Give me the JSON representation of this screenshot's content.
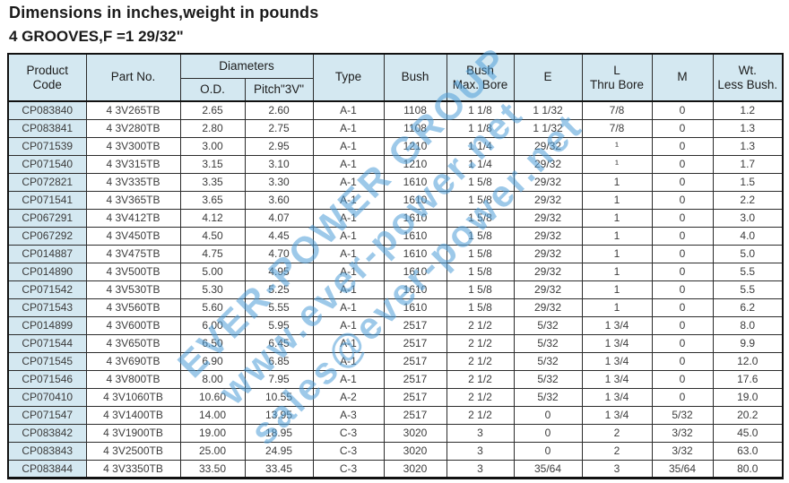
{
  "page": {
    "title": "Dimensions in inches,weight in pounds",
    "subtitle": "4 GROOVES,F =1 29/32\""
  },
  "watermark": {
    "color": "#4e9ed8",
    "lines": [
      "EVER-POWER GROUP",
      "www.ever-power.net",
      "sales@ever-power.net"
    ]
  },
  "table": {
    "headers": {
      "product_code": [
        "Product",
        "Code"
      ],
      "part_no": "Part No.",
      "diameters": "Diameters",
      "od": "O.D.",
      "pitch": "Pitch\"3V\"",
      "type": "Type",
      "bush": "Bush",
      "bush_max_bore": [
        "Bush",
        "Max. Bore"
      ],
      "e": "E",
      "l_thru_bore": [
        "L",
        "Thru Bore"
      ],
      "m": "M",
      "wt_less_bush": [
        "Wt.",
        "Less Bush."
      ]
    },
    "column_keys": [
      "product-code",
      "part-no",
      "od",
      "pitch-3v",
      "type",
      "bush",
      "bush-max-bore",
      "e",
      "l-thru-bore",
      "m",
      "wt-less-bush"
    ],
    "rows": [
      [
        "CP083840",
        "4 3V265TB",
        "2.65",
        "2.60",
        "A-1",
        "1108",
        "1 1/8",
        "1 1/32",
        "7/8",
        "0",
        "1.2"
      ],
      [
        "CP083841",
        "4 3V280TB",
        "2.80",
        "2.75",
        "A-1",
        "1108",
        "1 1/8",
        "1 1/32",
        "7/8",
        "0",
        "1.3"
      ],
      [
        "CP071539",
        "4 3V300TB",
        "3.00",
        "2.95",
        "A-1",
        "1210",
        "1 1/4",
        "29/32",
        "¹",
        "0",
        "1.3"
      ],
      [
        "CP071540",
        "4 3V315TB",
        "3.15",
        "3.10",
        "A-1",
        "1210",
        "1 1/4",
        "29/32",
        "¹",
        "0",
        "1.7"
      ],
      [
        "CP072821",
        "4 3V335TB",
        "3.35",
        "3.30",
        "A-1",
        "1610",
        "1 5/8",
        "29/32",
        "1",
        "0",
        "1.5"
      ],
      [
        "CP071541",
        "4 3V365TB",
        "3.65",
        "3.60",
        "A-1",
        "1610",
        "1 5/8",
        "29/32",
        "1",
        "0",
        "2.2"
      ],
      [
        "CP067291",
        "4 3V412TB",
        "4.12",
        "4.07",
        "A-1",
        "1610",
        "1 5/8",
        "29/32",
        "1",
        "0",
        "3.0"
      ],
      [
        "CP067292",
        "4 3V450TB",
        "4.50",
        "4.45",
        "A-1",
        "1610",
        "1 5/8",
        "29/32",
        "1",
        "0",
        "4.0"
      ],
      [
        "CP014887",
        "4 3V475TB",
        "4.75",
        "4.70",
        "A-1",
        "1610",
        "1 5/8",
        "29/32",
        "1",
        "0",
        "5.0"
      ],
      [
        "CP014890",
        "4 3V500TB",
        "5.00",
        "4.95",
        "A-1",
        "1610",
        "1 5/8",
        "29/32",
        "1",
        "0",
        "5.5"
      ],
      [
        "CP071542",
        "4 3V530TB",
        "5.30",
        "5.25",
        "A-1",
        "1610",
        "1 5/8",
        "29/32",
        "1",
        "0",
        "5.5"
      ],
      [
        "CP071543",
        "4 3V560TB",
        "5.60",
        "5.55",
        "A-1",
        "1610",
        "1 5/8",
        "29/32",
        "1",
        "0",
        "6.2"
      ],
      [
        "CP014899",
        "4 3V600TB",
        "6.00",
        "5.95",
        "A-1",
        "2517",
        "2 1/2",
        "5/32",
        "1 3/4",
        "0",
        "8.0"
      ],
      [
        "CP071544",
        "4 3V650TB",
        "6.50",
        "6.45",
        "A-1",
        "2517",
        "2 1/2",
        "5/32",
        "1 3/4",
        "0",
        "9.9"
      ],
      [
        "CP071545",
        "4 3V690TB",
        "6.90",
        "6.85",
        "A-1",
        "2517",
        "2 1/2",
        "5/32",
        "1 3/4",
        "0",
        "12.0"
      ],
      [
        "CP071546",
        "4 3V800TB",
        "8.00",
        "7.95",
        "A-1",
        "2517",
        "2 1/2",
        "5/32",
        "1 3/4",
        "0",
        "17.6"
      ],
      [
        "CP070410",
        "4 3V1060TB",
        "10.60",
        "10.55",
        "A-2",
        "2517",
        "2 1/2",
        "5/32",
        "1 3/4",
        "0",
        "19.0"
      ],
      [
        "CP071547",
        "4 3V1400TB",
        "14.00",
        "13.95",
        "A-3",
        "2517",
        "2 1/2",
        "0",
        "1 3/4",
        "5/32",
        "20.2"
      ],
      [
        "CP083842",
        "4 3V1900TB",
        "19.00",
        "18.95",
        "C-3",
        "3020",
        "3",
        "0",
        "2",
        "3/32",
        "45.0"
      ],
      [
        "CP083843",
        "4 3V2500TB",
        "25.00",
        "24.95",
        "C-3",
        "3020",
        "3",
        "0",
        "2",
        "3/32",
        "63.0"
      ],
      [
        "CP083844",
        "4 3V3350TB",
        "33.50",
        "33.45",
        "C-3",
        "3020",
        "3",
        "35/64",
        "3",
        "35/64",
        "80.0"
      ]
    ]
  }
}
